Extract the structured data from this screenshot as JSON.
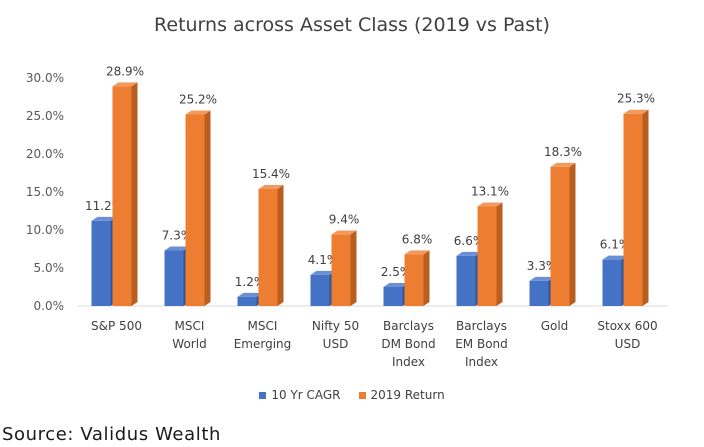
{
  "source_text": "Source: Validus Wealth",
  "chart_data": {
    "type": "bar",
    "title": "Returns across Asset Class (2019 vs Past)",
    "categories": [
      [
        "S&P 500"
      ],
      [
        "MSCI",
        "World"
      ],
      [
        "MSCI",
        "Emerging"
      ],
      [
        "Nifty 50",
        "USD"
      ],
      [
        "Barclays",
        "DM Bond",
        "Index"
      ],
      [
        "Barclays",
        "EM Bond",
        "Index"
      ],
      [
        "Gold"
      ],
      [
        "Stoxx 600",
        "USD"
      ]
    ],
    "series": [
      {
        "name": "10 Yr CAGR",
        "color": "#4472C4",
        "side_color": "#2F5597",
        "top_color": "#6A8FD3",
        "values": [
          11.2,
          7.3,
          1.2,
          4.1,
          2.5,
          6.6,
          3.3,
          6.1
        ],
        "labels": [
          "11.2%",
          "7.3%",
          "1.2%",
          "4.1%",
          "2.5%",
          "6.6%",
          "3.3%",
          "6.1%"
        ]
      },
      {
        "name": "2019 Return",
        "color": "#ED7D31",
        "side_color": "#B85E1F",
        "top_color": "#F29A5E",
        "values": [
          28.9,
          25.2,
          15.4,
          9.4,
          6.8,
          13.1,
          18.3,
          25.3
        ],
        "labels": [
          "28.9%",
          "25.2%",
          "15.4%",
          "9.4%",
          "6.8%",
          "13.1%",
          "18.3%",
          "25.3%"
        ]
      }
    ],
    "yticks": [
      "0.0%",
      "5.0%",
      "10.0%",
      "15.0%",
      "20.0%",
      "25.0%",
      "30.0%"
    ],
    "ylim": [
      0,
      30
    ],
    "ystep": 5,
    "grid": false,
    "legend_position": "bottom"
  }
}
